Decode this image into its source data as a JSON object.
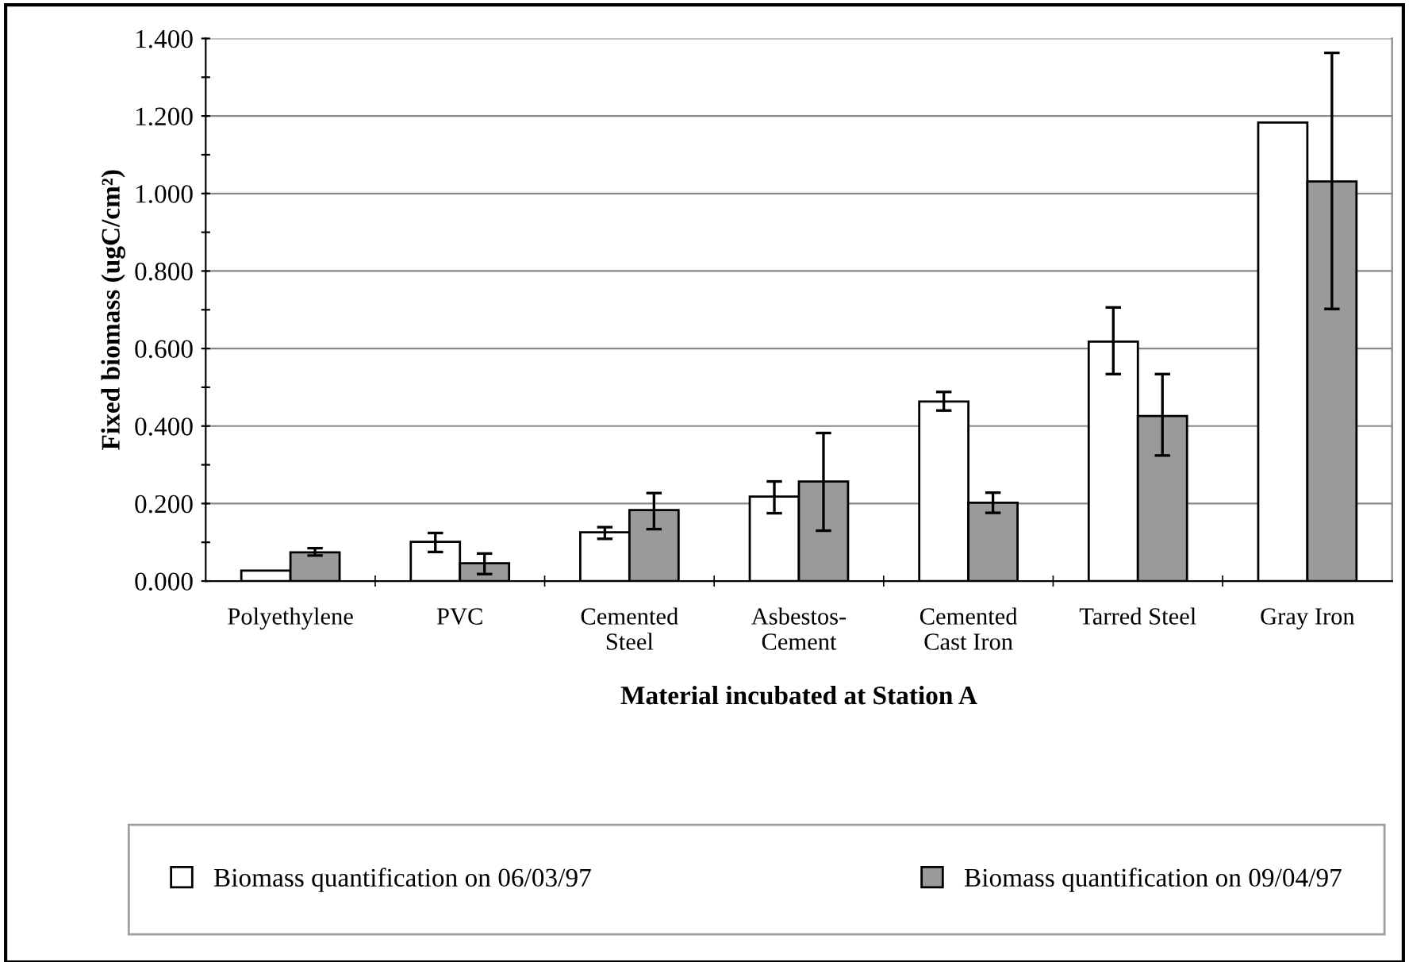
{
  "chart_data": {
    "type": "bar",
    "xlabel": "Material incubated at Station A",
    "ylabel": "Fixed biomass (ugC/cm²)",
    "categories": [
      "Polyethylene",
      "PVC",
      "Cemented\nSteel",
      "Asbestos-\nCement",
      "Cemented\nCast Iron",
      "Tarred Steel",
      "Gray Iron"
    ],
    "series": [
      {
        "name": "Biomass quantification on 06/03/97",
        "color": "#ffffff",
        "values": [
          0.027,
          0.101,
          0.126,
          0.218,
          0.463,
          0.618,
          1.183
        ],
        "errors": [
          null,
          [
            0.075,
            0.124
          ],
          [
            0.109,
            0.139
          ],
          [
            0.175,
            0.257
          ],
          [
            0.44,
            0.488
          ],
          [
            0.534,
            0.706
          ],
          null
        ]
      },
      {
        "name": "Biomass quantification on 09/04/97",
        "color": "#9a9a9a",
        "values": [
          0.074,
          0.046,
          0.183,
          0.257,
          0.202,
          0.426,
          1.031
        ],
        "errors": [
          [
            0.066,
            0.085
          ],
          [
            0.018,
            0.071
          ],
          [
            0.134,
            0.227
          ],
          [
            0.13,
            0.382
          ],
          [
            0.176,
            0.228
          ],
          [
            0.324,
            0.534
          ],
          [
            0.702,
            1.363
          ]
        ]
      }
    ],
    "ylim": [
      0,
      1.4
    ],
    "yticks": [
      {
        "value": 0,
        "label": "0.000"
      },
      {
        "value": 0.1,
        "label": null
      },
      {
        "value": 0.2,
        "label": "0.200"
      },
      {
        "value": 0.3,
        "label": null
      },
      {
        "value": 0.4,
        "label": "0.400"
      },
      {
        "value": 0.5,
        "label": null
      },
      {
        "value": 0.6,
        "label": "0.600"
      },
      {
        "value": 0.7,
        "label": null
      },
      {
        "value": 0.8,
        "label": "0.800"
      },
      {
        "value": 0.9,
        "label": null
      },
      {
        "value": 1.0,
        "label": "1.000"
      },
      {
        "value": 1.1,
        "label": null
      },
      {
        "value": 1.2,
        "label": "1.200"
      },
      {
        "value": 1.3,
        "label": null
      },
      {
        "value": 1.4,
        "label": "1.400"
      }
    ],
    "grid": "y",
    "legend": "bottom"
  }
}
